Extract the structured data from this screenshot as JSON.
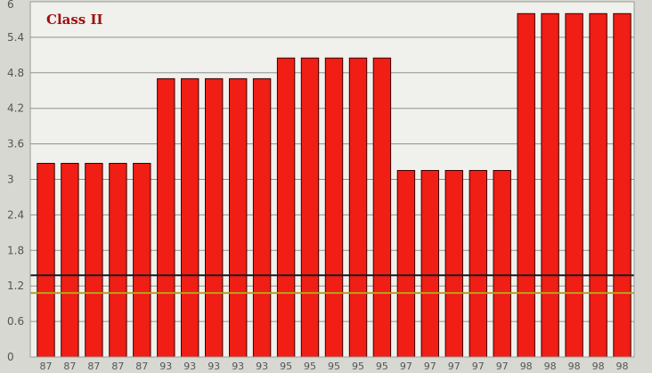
{
  "chart_data": {
    "type": "bar",
    "title": "Class II",
    "xlabel": "",
    "ylabel": "",
    "ylim": [
      0,
      6
    ],
    "yticks": [
      0,
      0.6,
      1.2,
      1.8,
      2.4,
      3,
      3.6,
      4.2,
      4.8,
      5.4,
      6
    ],
    "ytick_labels": [
      "0",
      "0.6",
      "1.2",
      "1.8",
      "2.4",
      "3",
      "3.6",
      "4.2",
      "4.8",
      "5.4",
      "6"
    ],
    "grid": true,
    "categories": [
      "87",
      "87",
      "87",
      "87",
      "87",
      "93",
      "93",
      "93",
      "93",
      "93",
      "95",
      "95",
      "95",
      "95",
      "95",
      "97",
      "97",
      "97",
      "97",
      "97",
      "98",
      "98",
      "98",
      "98",
      "98"
    ],
    "values": [
      3.27,
      3.27,
      3.27,
      3.27,
      3.27,
      4.7,
      4.7,
      4.7,
      4.7,
      4.7,
      5.05,
      5.05,
      5.05,
      5.05,
      5.05,
      3.15,
      3.15,
      3.15,
      3.15,
      3.15,
      5.8,
      5.8,
      5.8,
      5.8,
      5.8
    ],
    "reference_lines": [
      {
        "value": 1.38,
        "color": "#1a1a1a"
      },
      {
        "value": 1.08,
        "color": "#b8a020"
      }
    ]
  },
  "colors": {
    "bar_fill": "#f01e14",
    "bar_stroke": "#3a0000",
    "plot_bg": "#f0f0ec",
    "outer_bg": "#d8d8d2",
    "grid": "#8f8f8f",
    "title_color": "#a01010",
    "tick_text": "#555555",
    "frame": "#9a9a9a"
  }
}
